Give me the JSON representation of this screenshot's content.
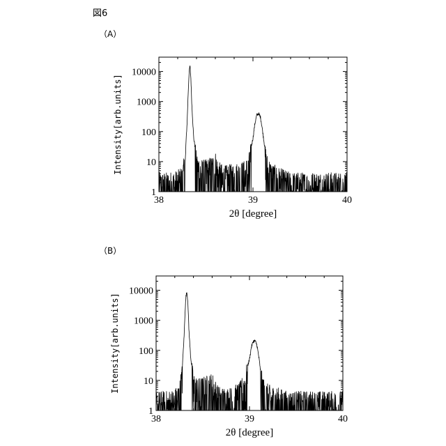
{
  "figure_title": "図6",
  "chart_data": [
    {
      "panel_label": "（A）",
      "type": "line",
      "xlabel": "2θ [degree]",
      "ylabel": "Intensity[arb.units]",
      "xlim": [
        38,
        40
      ],
      "ylim": [
        1,
        30000
      ],
      "yscale": "log",
      "xticks": [
        "38",
        "39",
        "40"
      ],
      "yticks": [
        "1",
        "10",
        "100",
        "1000",
        "10000"
      ],
      "grid": false,
      "series": [
        {
          "x": [
            38.0,
            38.1,
            38.2,
            38.25,
            38.28,
            38.3,
            38.31,
            38.32,
            38.33,
            38.34,
            38.35,
            38.37,
            38.4,
            38.45,
            38.5,
            38.55,
            38.58,
            38.6,
            38.62,
            38.65,
            38.7,
            38.8,
            38.9,
            38.95,
            39.0,
            39.02,
            39.04,
            39.06,
            39.08,
            39.1,
            39.12,
            39.15,
            39.2,
            39.3,
            39.4,
            39.6,
            40.0
          ],
          "y": [
            3,
            3,
            3.5,
            5,
            15,
            200,
            1500,
            8000,
            16000,
            6000,
            800,
            60,
            15,
            8,
            8,
            10,
            12,
            15,
            10,
            6,
            5,
            6,
            7,
            10,
            60,
            180,
            350,
            400,
            300,
            120,
            40,
            12,
            6,
            4,
            3,
            3,
            3
          ]
        }
      ]
    },
    {
      "panel_label": "（B）",
      "type": "line",
      "xlabel": "2θ [degree]",
      "ylabel": "Intensity[arb.units]",
      "xlim": [
        38,
        40
      ],
      "ylim": [
        1,
        30000
      ],
      "yscale": "log",
      "xticks": [
        "38",
        "39",
        "40"
      ],
      "yticks": [
        "1",
        "10",
        "100",
        "1000",
        "10000"
      ],
      "grid": false,
      "series": [
        {
          "x": [
            38.0,
            38.1,
            38.2,
            38.25,
            38.28,
            38.3,
            38.31,
            38.32,
            38.33,
            38.34,
            38.35,
            38.37,
            38.4,
            38.45,
            38.5,
            38.55,
            38.6,
            38.62,
            38.65,
            38.7,
            38.8,
            38.9,
            38.95,
            39.0,
            39.02,
            39.04,
            39.06,
            39.08,
            39.1,
            39.12,
            39.15,
            39.2,
            39.3,
            39.4,
            39.6,
            40.0
          ],
          "y": [
            3,
            3,
            3.5,
            6,
            25,
            300,
            2000,
            6500,
            9000,
            4000,
            600,
            60,
            12,
            8,
            9,
            10,
            12,
            10,
            5,
            4,
            4,
            6,
            15,
            50,
            130,
            200,
            210,
            150,
            60,
            20,
            8,
            5,
            4,
            3,
            3,
            3
          ]
        }
      ]
    }
  ]
}
